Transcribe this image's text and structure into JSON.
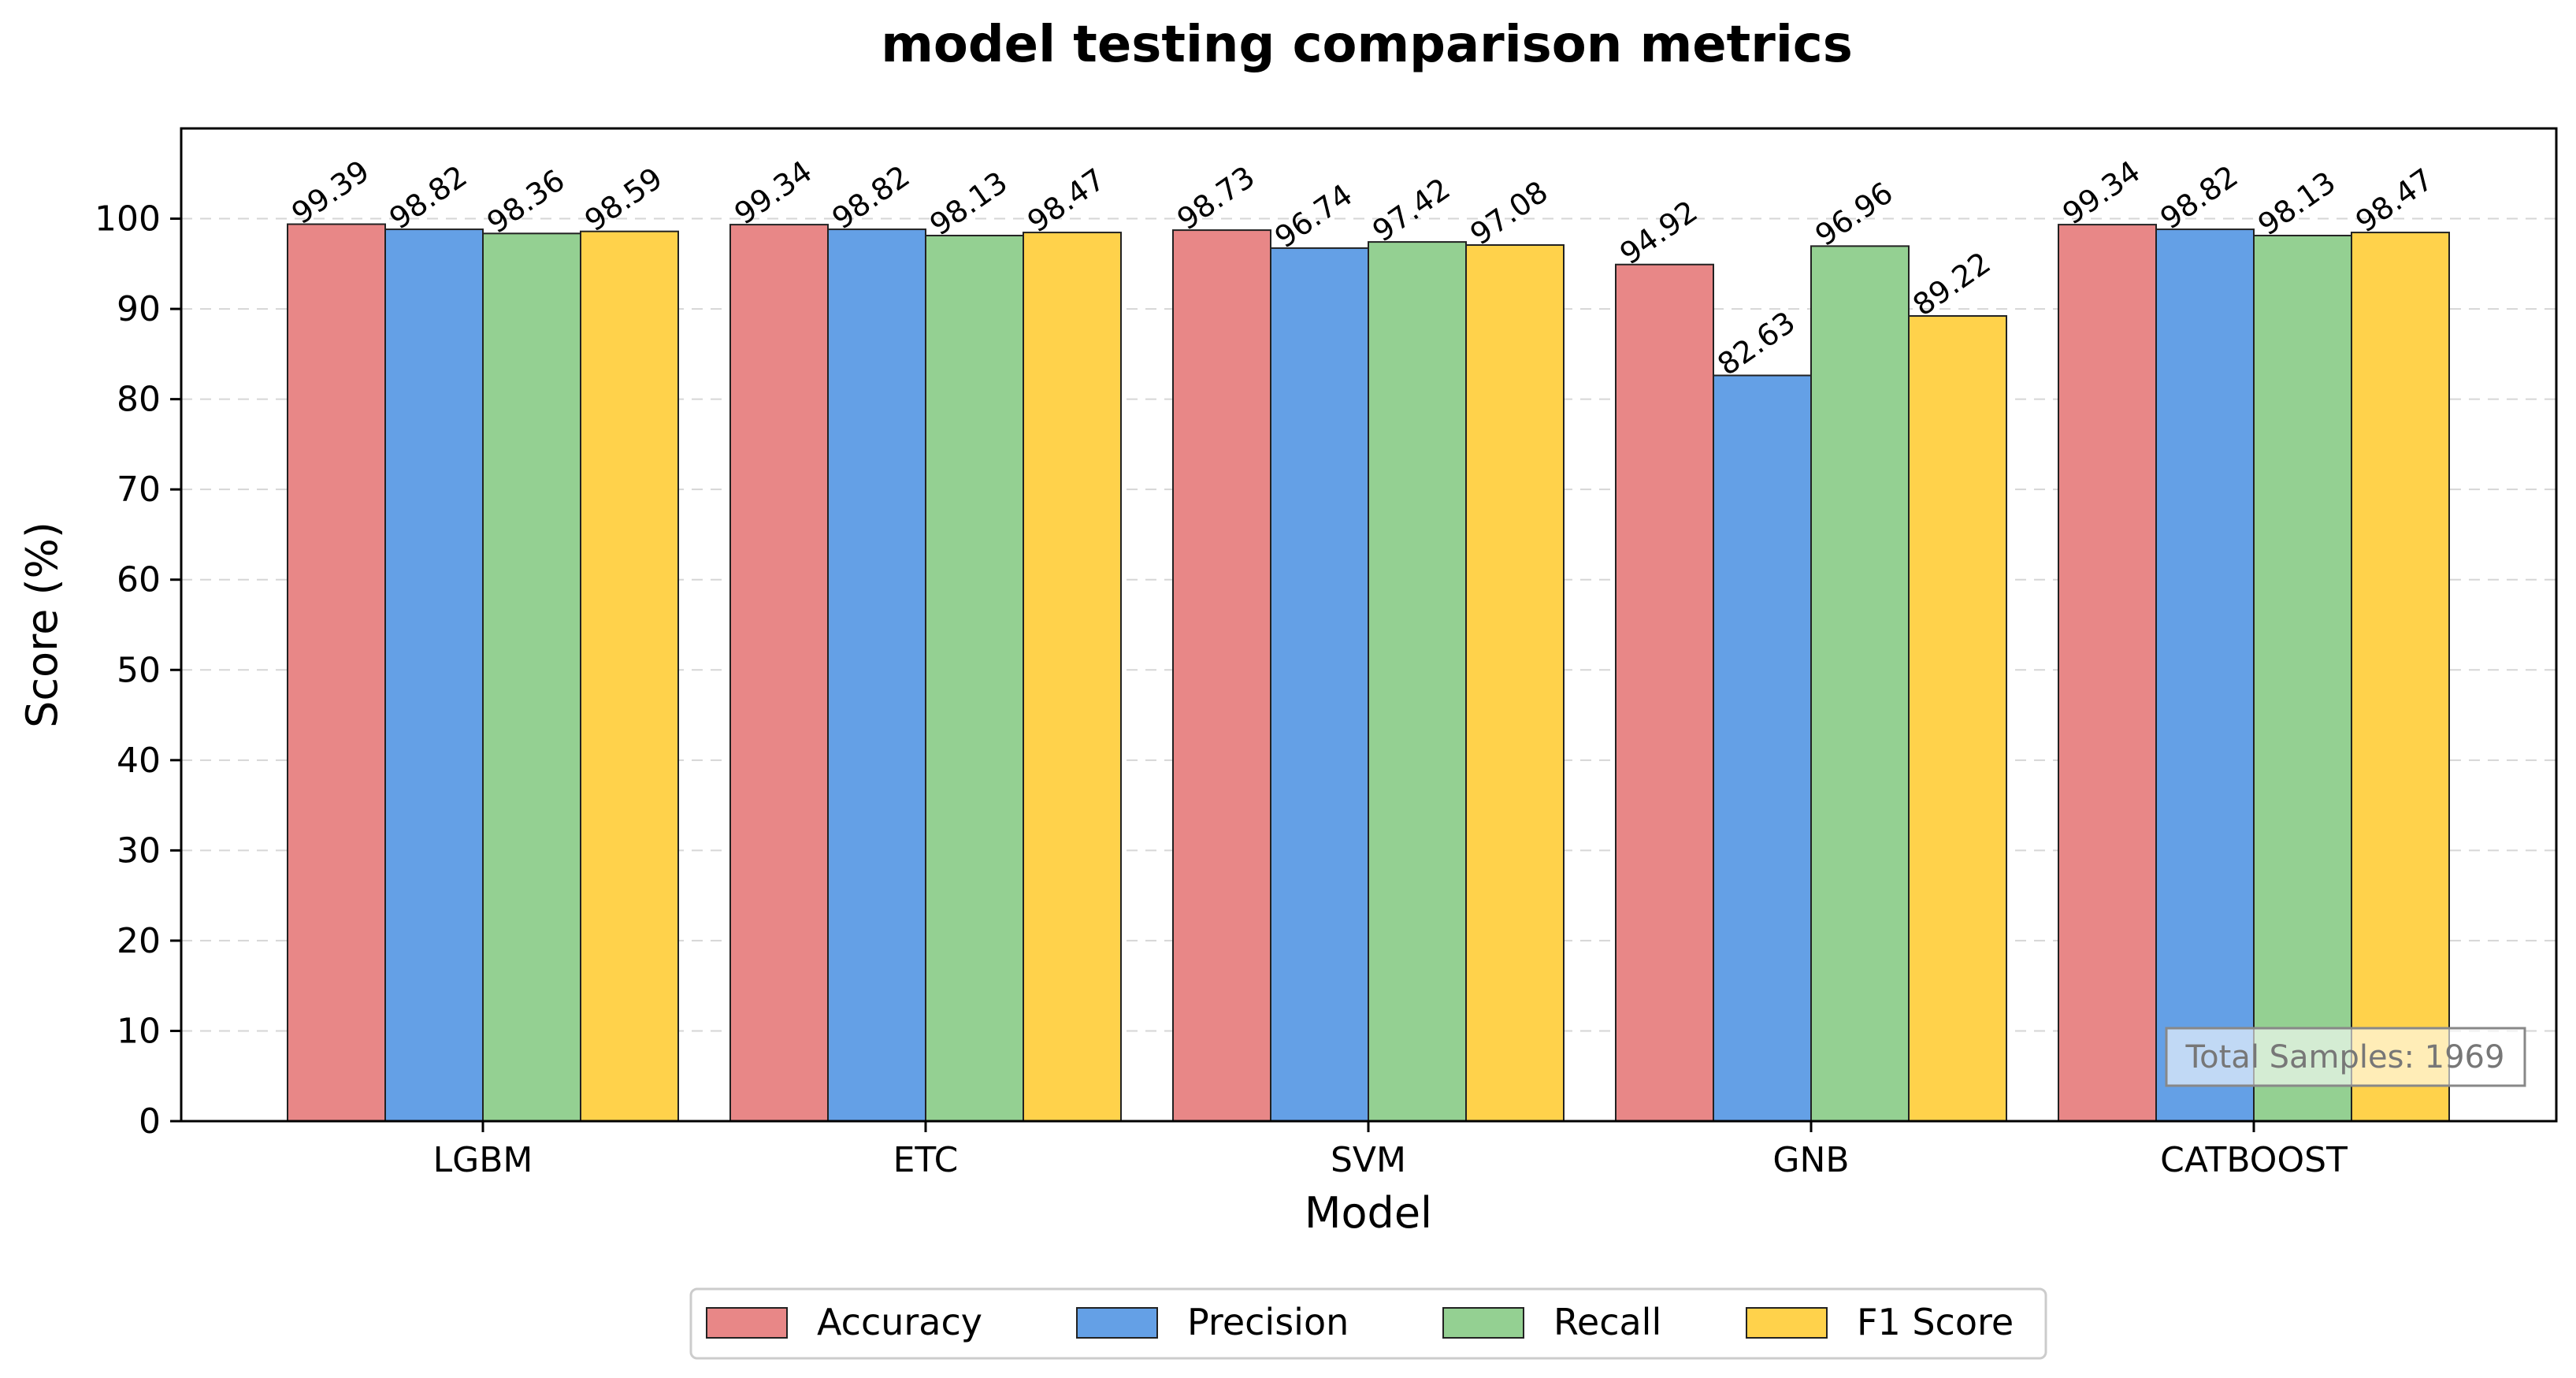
{
  "chart_data": {
    "type": "bar",
    "title": "model testing comparison metrics",
    "xlabel": "Model",
    "ylabel": "Score (%)",
    "categories": [
      "LGBM",
      "ETC",
      "SVM",
      "GNB",
      "CATBOOST"
    ],
    "series": [
      {
        "name": "Accuracy",
        "color": "#e88787",
        "values": [
          99.39,
          99.34,
          98.73,
          94.92,
          99.34
        ]
      },
      {
        "name": "Precision",
        "color": "#64a0e6",
        "values": [
          98.82,
          98.82,
          96.74,
          82.63,
          98.82
        ]
      },
      {
        "name": "Recall",
        "color": "#94d092",
        "values": [
          98.36,
          98.13,
          97.42,
          96.96,
          98.13
        ]
      },
      {
        "name": "F1 Score",
        "color": "#ffd24b",
        "values": [
          98.59,
          98.47,
          97.08,
          89.22,
          98.47
        ]
      }
    ],
    "ylim": [
      0,
      110
    ],
    "yticks": [
      0,
      10,
      20,
      30,
      40,
      50,
      60,
      70,
      80,
      90,
      100
    ],
    "grid": "y-dashed",
    "legend_placement": "bottom-center",
    "annotation": "Total Samples: 1969"
  }
}
